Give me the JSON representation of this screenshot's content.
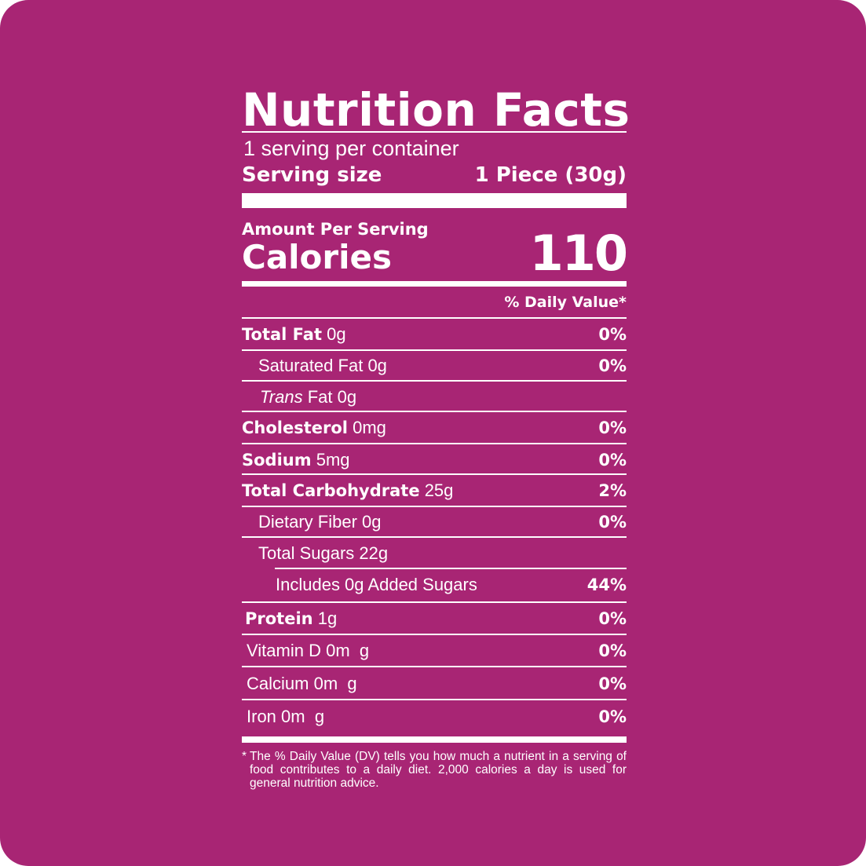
{
  "colors": {
    "background": "#a82574",
    "foreground": "#ffffff"
  },
  "title": "Nutrition Facts",
  "servings_per_container": "1 serving per container",
  "serving_size": {
    "label": "Serving size",
    "value": "1 Piece (30g)"
  },
  "amount_per_serving": "Amount Per Serving",
  "calories": {
    "label": "Calories",
    "value": "110"
  },
  "daily_value_header": "% Daily Value*",
  "nutrients": [
    {
      "name": "Total Fat",
      "amount": "0g",
      "dv": "0%"
    },
    {
      "name": "Saturated Fat",
      "amount": "0g",
      "dv": "0%"
    },
    {
      "name": "Trans",
      "suffix": "Fat 0g",
      "dv": ""
    },
    {
      "name": "Cholesterol",
      "amount": "0mg",
      "dv": "0%"
    },
    {
      "name": "Sodium",
      "amount": "5mg",
      "dv": "0%"
    },
    {
      "name": "Total Carbohydrate",
      "amount": "25g",
      "dv": "2%"
    },
    {
      "name": "Dietary Fiber",
      "amount": "0g",
      "dv": "0%"
    },
    {
      "name": "Total Sugars",
      "amount": "22g",
      "dv": ""
    },
    {
      "name": "Includes 0g Added Sugars",
      "amount": "",
      "dv": "44%"
    },
    {
      "name": "Protein",
      "amount": "1g",
      "dv": "0%"
    },
    {
      "name": "Vitamin D",
      "amount": "0m  g",
      "dv": "0%"
    },
    {
      "name": "Calcium",
      "amount": "0m  g",
      "dv": "0%"
    },
    {
      "name": "Iron",
      "amount": "0m  g",
      "dv": "0%"
    }
  ],
  "footnote_marker": "*",
  "footnote": "The % Daily Value (DV) tells you how much a nutrient in a serving of food contributes to a daily diet. 2,000 calories a day is used for general nutrition advice."
}
